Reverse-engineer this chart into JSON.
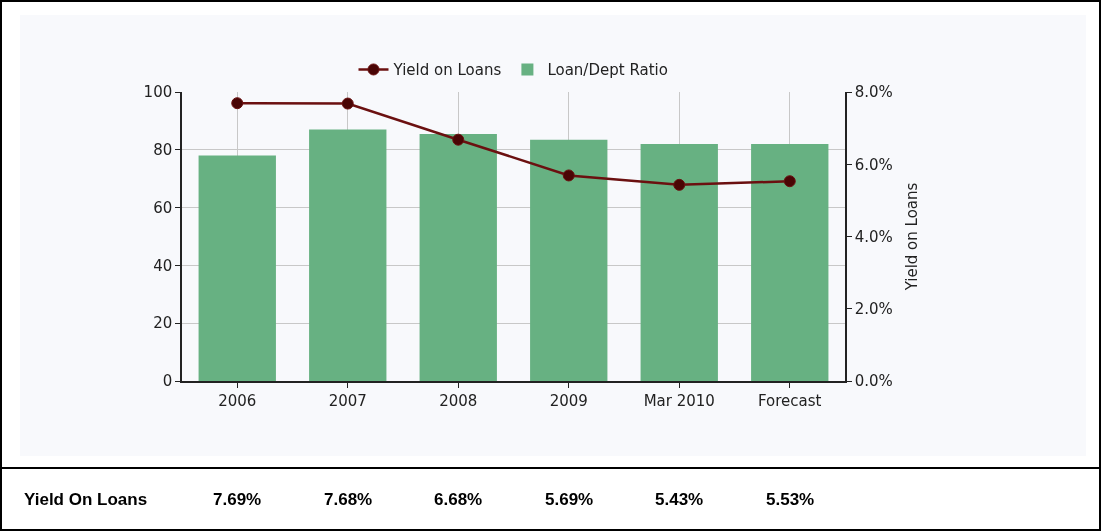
{
  "chart_data": {
    "type": "bar",
    "categories": [
      "2006",
      "2007",
      "2008",
      "2009",
      "Mar 2010",
      "Forecast"
    ],
    "series": [
      {
        "name": "Yield on Loans",
        "type": "line",
        "axis": "y2",
        "color": "#6b1010",
        "values": [
          7.69,
          7.68,
          6.68,
          5.69,
          5.43,
          5.53
        ],
        "value_labels": [
          "7.69%",
          "7.68%",
          "6.68%",
          "5.69%",
          "5.43%",
          "5.53%"
        ]
      },
      {
        "name": "Loan/Dept Ratio",
        "color": "#67b182",
        "values": [
          78,
          87,
          85.5,
          83.5,
          82,
          82
        ]
      }
    ],
    "ylim": [
      0,
      100
    ],
    "yticks": [
      0,
      20,
      40,
      60,
      80,
      100
    ],
    "y2lim": [
      0,
      8
    ],
    "y2ticks": [
      {
        "value": 0,
        "label": "0.0%"
      },
      {
        "value": 2,
        "label": "2.0%"
      },
      {
        "value": 4,
        "label": "4.0%"
      },
      {
        "value": 6,
        "label": "6.0%"
      },
      {
        "value": 8,
        "label": "8.0%"
      }
    ],
    "y2label": "Yield on Loans",
    "annotations": [
      "Yield On Loans"
    ],
    "grid": true,
    "legend": "top",
    "marker": "circle",
    "line_style": "solid"
  }
}
